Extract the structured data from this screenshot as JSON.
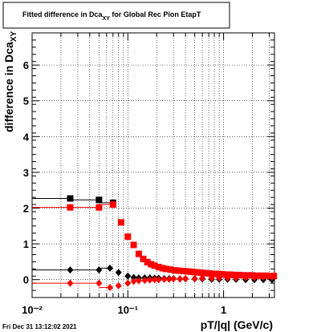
{
  "chart_data": {
    "type": "scatter",
    "title": "Fitted difference in Dca",
    "title_sub": "XY",
    "title_rest": " for Global Rec Pion EtapT",
    "xlabel": "pT/|q| (GeV/c)",
    "ylabel": "difference in Dca",
    "ylabel_sub": "XY",
    "x_scale": "log",
    "xlim": [
      0.01,
      3.4
    ],
    "ylim": [
      -0.5,
      6.9
    ],
    "x_tick_labels": [
      "10⁻²",
      "10⁻¹",
      "1"
    ],
    "x_tick_values": [
      0.01,
      0.1,
      1
    ],
    "y_ticks": [
      0,
      1,
      2,
      3,
      4,
      5,
      6
    ],
    "grid": true,
    "timestamp": "Fri Dec 31 13:12:02 2021",
    "series": [
      {
        "marker": "square",
        "color": "#000000",
        "x": [
          0.025,
          0.05,
          0.07
        ],
        "y": [
          2.27,
          2.23,
          2.15
        ],
        "x_lo": [
          0.0,
          0.025,
          0.05
        ]
      },
      {
        "marker": "square",
        "color": "#ff0000",
        "x": [
          0.025,
          0.05,
          0.07,
          0.085,
          0.1,
          0.115,
          0.13,
          0.145,
          0.16,
          0.175,
          0.19,
          0.21,
          0.23,
          0.25,
          0.28,
          0.31,
          0.34,
          0.38,
          0.42,
          0.46,
          0.5,
          0.55,
          0.6,
          0.66,
          0.72,
          0.8,
          0.88,
          0.97,
          1.07,
          1.18,
          1.3,
          1.45,
          1.6,
          1.8,
          2.0,
          2.25,
          2.5,
          2.8,
          3.1,
          3.35
        ],
        "y": [
          2.02,
          2.02,
          2.1,
          1.6,
          1.2,
          0.97,
          0.72,
          0.58,
          0.49,
          0.43,
          0.39,
          0.35,
          0.32,
          0.3,
          0.28,
          0.26,
          0.25,
          0.24,
          0.23,
          0.22,
          0.21,
          0.2,
          0.19,
          0.18,
          0.17,
          0.16,
          0.16,
          0.15,
          0.14,
          0.14,
          0.13,
          0.13,
          0.12,
          0.12,
          0.12,
          0.11,
          0.11,
          0.11,
          0.1,
          0.1
        ],
        "x_lo": [
          0.0,
          0.025,
          0.05
        ]
      },
      {
        "marker": "diamond",
        "color": "#000000",
        "x": [
          0.025,
          0.05,
          0.065,
          0.08,
          0.1,
          0.115,
          0.13,
          0.15,
          0.17,
          0.19,
          0.21,
          0.24,
          0.27,
          0.3,
          0.35,
          0.4,
          0.5,
          0.6,
          0.75,
          0.9,
          1.1,
          1.35,
          1.7,
          2.1,
          2.6,
          3.2
        ],
        "y": [
          0.27,
          0.27,
          0.32,
          0.2,
          0.1,
          0.06,
          0.05,
          0.05,
          0.05,
          0.04,
          0.04,
          0.03,
          0.03,
          0.03,
          0.02,
          0.02,
          0.02,
          0.02,
          0.01,
          0.01,
          0.01,
          0.01,
          0.0,
          0.0,
          0.0,
          0.0
        ],
        "x_lo": [
          0.0,
          0.025,
          0.05
        ]
      },
      {
        "marker": "diamond",
        "color": "#ff0000",
        "x": [
          0.025,
          0.05,
          0.065,
          0.08,
          0.1,
          0.115,
          0.13,
          0.15,
          0.17,
          0.19,
          0.21,
          0.24,
          0.27,
          0.3,
          0.35,
          0.4,
          0.5,
          0.6,
          0.75,
          0.9,
          1.1,
          1.35,
          1.7,
          2.1,
          2.6,
          3.2
        ],
        "y": [
          -0.1,
          -0.1,
          -0.22,
          -0.17,
          -0.1,
          -0.05,
          -0.03,
          -0.02,
          -0.01,
          0.0,
          0.0,
          0.01,
          0.01,
          0.02,
          0.02,
          0.03,
          0.03,
          0.04,
          0.04,
          0.05,
          0.05,
          0.05,
          0.06,
          0.06,
          0.07,
          0.07
        ],
        "x_lo": [
          0.0,
          0.025,
          0.05
        ]
      }
    ]
  }
}
